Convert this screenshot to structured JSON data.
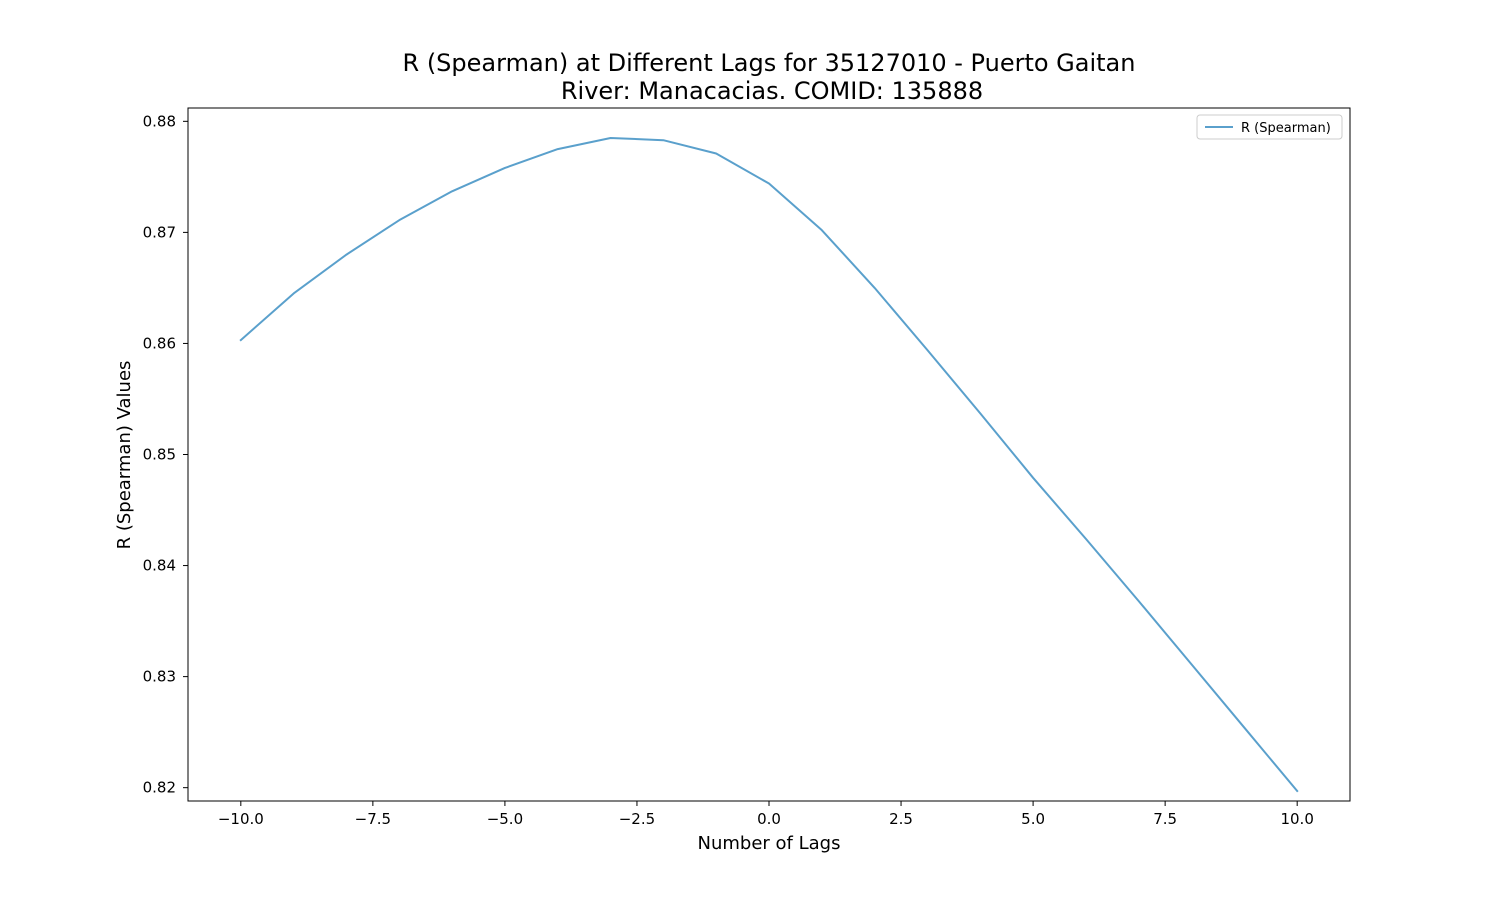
{
  "chart_data": {
    "type": "line",
    "title": "R (Spearman) at Different Lags for 35127010 - Puerto Gaitan",
    "subtitle": "River: Manacacias. COMID: 135888",
    "xlabel": "Number of Lags",
    "ylabel": "R (Spearman) Values",
    "xlim": [
      -11,
      11
    ],
    "ylim": [
      0.8188,
      0.8812
    ],
    "x_ticks": [
      -10.0,
      -7.5,
      -5.0,
      -2.5,
      0.0,
      2.5,
      5.0,
      7.5,
      10.0
    ],
    "x_tick_labels": [
      "−10.0",
      "−7.5",
      "−5.0",
      "−2.5",
      "0.0",
      "2.5",
      "5.0",
      "7.5",
      "10.0"
    ],
    "y_ticks": [
      0.82,
      0.83,
      0.84,
      0.85,
      0.86,
      0.87,
      0.88
    ],
    "y_tick_labels": [
      "0.82",
      "0.83",
      "0.84",
      "0.85",
      "0.86",
      "0.87",
      "0.88"
    ],
    "grid": false,
    "legend_position": "upper right",
    "series": [
      {
        "name": "R (Spearman)",
        "color": "#5aa0cc",
        "x": [
          -10,
          -9,
          -8,
          -7,
          -6,
          -5,
          -4,
          -3,
          -2,
          -1,
          0,
          1,
          2,
          3,
          4,
          5,
          6,
          7,
          8,
          9,
          10
        ],
        "y": [
          0.8603,
          0.8645,
          0.868,
          0.8711,
          0.8737,
          0.8758,
          0.8775,
          0.8785,
          0.8783,
          0.8771,
          0.8744,
          0.8702,
          0.865,
          0.8594,
          0.8537,
          0.8479,
          0.8424,
          0.8368,
          0.8311,
          0.8254,
          0.8197
        ]
      }
    ]
  }
}
